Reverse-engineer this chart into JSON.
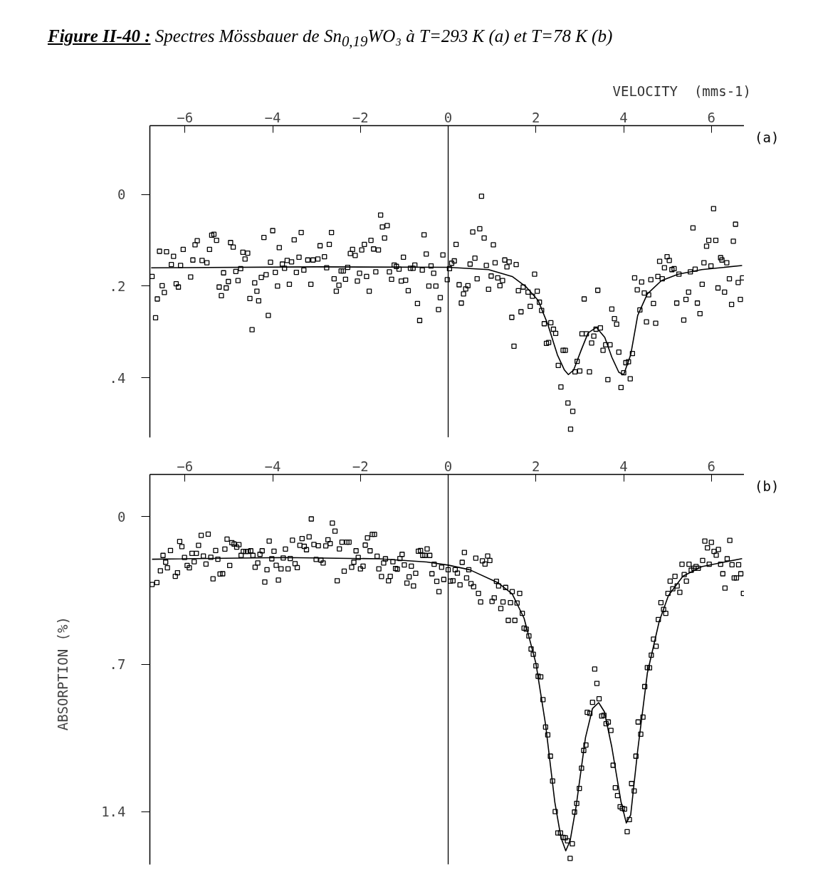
{
  "chart_data": [
    {
      "type": "scatter",
      "title": "Figure II-40 :",
      "subtitle": "Spectres Mössbauer de Sn$_{0,19}$WO₃ à T=293 K (a) et T=78 K (b)",
      "xlabel": "VELOCITY  (mms-1)",
      "annotations": [
        "(a)"
      ],
      "grid": false,
      "xlim": [
        -6.8,
        6.75
      ],
      "xticks": [
        -6,
        -4,
        -2,
        0,
        2,
        4,
        6
      ],
      "ylim": [
        0.53,
        -0.15
      ],
      "yticks": [
        {
          "value": 0,
          "label": "0"
        },
        {
          "value": 0.2,
          "label": ".2"
        },
        {
          "value": 0.4,
          "label": ".4"
        }
      ],
      "ref_lines": [
        {
          "axis": "x",
          "value": 0,
          "label": null
        }
      ],
      "series": [
        {
          "marker": "square",
          "color": "#000000",
          "x": [
            -6.75,
            -6.67,
            -6.63,
            -6.58,
            -6.52,
            -6.47,
            -6.42,
            -6.31,
            -6.26,
            -6.2,
            -6.15,
            -6.1,
            -6.04,
            -5.87,
            -5.82,
            -5.77,
            -5.72,
            -5.61,
            -5.5,
            -5.44,
            -5.39,
            -5.34,
            -5.28,
            -5.22,
            -5.17,
            -5.12,
            -5.06,
            -5.01,
            -4.96,
            -4.9,
            -4.84,
            -4.79,
            -4.73,
            -4.68,
            -4.63,
            -4.57,
            -4.52,
            -4.47,
            -4.41,
            -4.36,
            -4.32,
            -4.26,
            -4.2,
            -4.15,
            -4.1,
            -4.05,
            -4.0,
            -3.94,
            -3.89,
            -3.85,
            -3.78,
            -3.73,
            -3.67,
            -3.62,
            -3.57,
            -3.51,
            -3.46,
            -3.4,
            -3.35,
            -3.29,
            -3.2,
            -3.13,
            -3.08,
            -2.97,
            -2.92,
            -2.82,
            -2.77,
            -2.71,
            -2.66,
            -2.6,
            -2.55,
            -2.49,
            -2.44,
            -2.39,
            -2.34,
            -2.29,
            -2.23,
            -2.18,
            -2.12,
            -2.07,
            -2.02,
            -1.97,
            -1.91,
            -1.86,
            -1.8,
            -1.76,
            -1.7,
            -1.65,
            -1.59,
            -1.54,
            -1.5,
            -1.45,
            -1.39,
            -1.34,
            -1.29,
            -1.23,
            -1.18,
            -1.12,
            -1.07,
            -1.02,
            -0.97,
            -0.91,
            -0.86,
            -0.8,
            -0.76,
            -0.7,
            -0.65,
            -0.59,
            -0.55,
            -0.5,
            -0.44,
            -0.39,
            -0.33,
            -0.28,
            -0.22,
            -0.18,
            -0.12,
            -0.02,
            0.03,
            0.08,
            0.14,
            0.18,
            0.25,
            0.3,
            0.35,
            0.4,
            0.45,
            0.5,
            0.56,
            0.61,
            0.66,
            0.72,
            0.76,
            0.82,
            0.87,
            0.92,
            0.98,
            1.03,
            1.07,
            1.13,
            1.18,
            1.24,
            1.29,
            1.34,
            1.39,
            1.45,
            1.5,
            1.55,
            1.6,
            1.66,
            1.71,
            1.82,
            1.87,
            1.92,
            1.97,
            2.03,
            2.08,
            2.13,
            2.19,
            2.24,
            2.29,
            2.34,
            2.4,
            2.45,
            2.51,
            2.57,
            2.62,
            2.67,
            2.73,
            2.79,
            2.84,
            2.89,
            2.94,
            3.0,
            3.05,
            3.1,
            3.15,
            3.22,
            3.27,
            3.32,
            3.37,
            3.41,
            3.47,
            3.53,
            3.59,
            3.64,
            3.69,
            3.73,
            3.79,
            3.84,
            3.89,
            3.94,
            4.0,
            4.05,
            4.11,
            4.15,
            4.2,
            4.25,
            4.31,
            4.37,
            4.41,
            4.47,
            4.52,
            4.57,
            4.62,
            4.68,
            4.73,
            4.78,
            4.82,
            4.88,
            4.93,
            4.99,
            5.04,
            5.1,
            5.15,
            5.21,
            5.26,
            5.37,
            5.42,
            5.48,
            5.52,
            5.58,
            5.63,
            5.68,
            5.74,
            5.79,
            5.83,
            5.89,
            5.94,
            5.99,
            6.05,
            6.1,
            6.15,
            6.21,
            6.24,
            6.3,
            6.35,
            6.41,
            6.46,
            6.5,
            6.55,
            6.61,
            6.66,
            6.71
          ],
          "values": [
            0.179,
            0.269,
            0.228,
            0.124,
            0.199,
            0.214,
            0.125,
            0.153,
            0.135,
            0.195,
            0.202,
            0.155,
            0.12,
            0.18,
            0.143,
            0.11,
            0.101,
            0.144,
            0.149,
            0.12,
            0.089,
            0.087,
            0.1,
            0.202,
            0.221,
            0.171,
            0.204,
            0.19,
            0.105,
            0.115,
            0.168,
            0.188,
            0.162,
            0.126,
            0.141,
            0.128,
            0.227,
            0.295,
            0.193,
            0.211,
            0.232,
            0.181,
            0.094,
            0.175,
            0.264,
            0.148,
            0.079,
            0.17,
            0.2,
            0.116,
            0.152,
            0.161,
            0.144,
            0.196,
            0.147,
            0.099,
            0.17,
            0.137,
            0.083,
            0.165,
            0.143,
            0.196,
            0.143,
            0.141,
            0.112,
            0.136,
            0.16,
            0.109,
            0.083,
            0.184,
            0.211,
            0.198,
            0.167,
            0.167,
            0.185,
            0.159,
            0.129,
            0.12,
            0.133,
            0.189,
            0.172,
            0.121,
            0.109,
            0.179,
            0.211,
            0.1,
            0.119,
            0.169,
            0.121,
            0.045,
            0.071,
            0.095,
            0.068,
            0.169,
            0.185,
            0.154,
            0.157,
            0.163,
            0.189,
            0.137,
            0.187,
            0.21,
            0.161,
            0.161,
            0.154,
            0.238,
            0.275,
            0.165,
            0.088,
            0.13,
            0.2,
            0.156,
            0.172,
            0.2,
            0.251,
            0.225,
            0.132,
            0.186,
            0.162,
            0.15,
            0.145,
            0.109,
            0.197,
            0.237,
            0.217,
            0.206,
            0.199,
            0.152,
            0.082,
            0.139,
            0.184,
            0.075,
            0.004,
            0.095,
            0.155,
            0.207,
            0.178,
            0.11,
            0.149,
            0.182,
            0.199,
            0.188,
            0.143,
            0.158,
            0.147,
            0.268,
            0.331,
            0.153,
            0.21,
            0.256,
            0.202,
            0.213,
            0.244,
            0.222,
            0.174,
            0.211,
            0.235,
            0.253,
            0.282,
            0.325,
            0.323,
            0.28,
            0.294,
            0.303,
            0.373,
            0.42,
            0.34,
            0.34,
            0.455,
            0.512,
            0.473,
            0.387,
            0.364,
            0.385,
            0.304,
            0.228,
            0.304,
            0.387,
            0.324,
            0.309,
            0.294,
            0.209,
            0.291,
            0.34,
            0.328,
            0.404,
            0.328,
            0.25,
            0.271,
            0.283,
            0.344,
            0.421,
            0.389,
            0.367,
            0.365,
            0.402,
            0.347,
            0.182,
            0.208,
            0.252,
            0.191,
            0.215,
            0.278,
            0.219,
            0.186,
            0.238,
            0.281,
            0.179,
            0.146,
            0.184,
            0.16,
            0.136,
            0.144,
            0.164,
            0.162,
            0.237,
            0.174,
            0.274,
            0.229,
            0.213,
            0.169,
            0.073,
            0.163,
            0.237,
            0.26,
            0.196,
            0.149,
            0.113,
            0.1,
            0.156,
            0.031,
            0.1,
            0.204,
            0.138,
            0.143,
            0.213,
            0.149,
            0.184,
            0.24,
            0.102,
            0.065,
            0.192,
            0.229,
            0.182
          ]
        },
        {
          "type": "line",
          "color": "#000000",
          "x": [
            -6.77,
            -3.0,
            0.0,
            0.92,
            1.46,
            1.78,
            2.05,
            2.27,
            2.49,
            2.65,
            2.74,
            2.86,
            3.03,
            3.19,
            3.38,
            3.57,
            3.73,
            3.89,
            4.0,
            4.16,
            4.32,
            4.54,
            4.86,
            5.24,
            5.78,
            6.7
          ],
          "values": [
            0.16,
            0.158,
            0.159,
            0.164,
            0.179,
            0.202,
            0.231,
            0.283,
            0.35,
            0.383,
            0.393,
            0.383,
            0.34,
            0.302,
            0.29,
            0.312,
            0.355,
            0.388,
            0.393,
            0.35,
            0.264,
            0.217,
            0.188,
            0.174,
            0.164,
            0.155
          ]
        }
      ]
    },
    {
      "type": "scatter",
      "ylabel": "ABSORPTION  (%)",
      "annotations": [
        "(b)"
      ],
      "grid": false,
      "xlim": [
        -6.8,
        6.75
      ],
      "xticks": [
        -6,
        -4,
        -2,
        0,
        2,
        4,
        6
      ],
      "ylim": [
        1.65,
        -0.2
      ],
      "yticks": [
        {
          "value": 0,
          "label": "0"
        },
        {
          "value": 0.7,
          "label": ".7"
        },
        {
          "value": 1.4,
          "label": "1.4"
        }
      ],
      "ref_lines": [
        {
          "axis": "x",
          "value": 0,
          "label": null
        }
      ],
      "series": [
        {
          "marker": "square",
          "color": "#000000",
          "x": [
            -6.75,
            -6.64,
            -6.56,
            -6.5,
            -6.44,
            -6.4,
            -6.33,
            -6.22,
            -6.17,
            -6.12,
            -6.07,
            -6.01,
            -5.95,
            -5.9,
            -5.84,
            -5.79,
            -5.74,
            -5.69,
            -5.63,
            -5.58,
            -5.52,
            -5.47,
            -5.41,
            -5.36,
            -5.3,
            -5.25,
            -5.2,
            -5.14,
            -5.09,
            -5.04,
            -4.98,
            -4.93,
            -4.88,
            -4.82,
            -4.77,
            -4.72,
            -4.67,
            -4.61,
            -4.56,
            -4.5,
            -4.45,
            -4.4,
            -4.34,
            -4.29,
            -4.24,
            -4.18,
            -4.13,
            -4.08,
            -4.02,
            -3.97,
            -3.92,
            -3.87,
            -3.81,
            -3.76,
            -3.71,
            -3.65,
            -3.6,
            -3.55,
            -3.49,
            -3.44,
            -3.38,
            -3.33,
            -3.28,
            -3.23,
            -3.17,
            -3.12,
            -3.06,
            -3.01,
            -2.96,
            -2.9,
            -2.85,
            -2.79,
            -2.74,
            -2.69,
            -2.64,
            -2.58,
            -2.53,
            -2.48,
            -2.42,
            -2.37,
            -2.31,
            -2.26,
            -2.2,
            -2.15,
            -2.1,
            -2.05,
            -2.0,
            -1.94,
            -1.89,
            -1.84,
            -1.78,
            -1.73,
            -1.68,
            -1.62,
            -1.58,
            -1.52,
            -1.47,
            -1.43,
            -1.36,
            -1.32,
            -1.26,
            -1.2,
            -1.16,
            -1.1,
            -1.05,
            -1.0,
            -0.94,
            -0.89,
            -0.84,
            -0.79,
            -0.74,
            -0.68,
            -0.63,
            -0.58,
            -0.53,
            -0.48,
            -0.42,
            -0.37,
            -0.32,
            -0.26,
            -0.21,
            -0.15,
            -0.1,
            0.0,
            0.05,
            0.11,
            0.16,
            0.21,
            0.27,
            0.32,
            0.37,
            0.42,
            0.47,
            0.52,
            0.58,
            0.63,
            0.69,
            0.74,
            0.78,
            0.84,
            0.9,
            0.95,
            1.0,
            1.05,
            1.1,
            1.15,
            1.2,
            1.25,
            1.31,
            1.37,
            1.42,
            1.46,
            1.52,
            1.57,
            1.63,
            1.69,
            1.73,
            1.78,
            1.84,
            1.89,
            1.94,
            2.0,
            2.05,
            2.11,
            2.16,
            2.22,
            2.27,
            2.33,
            2.38,
            2.44,
            2.5,
            2.56,
            2.62,
            2.67,
            2.72,
            2.78,
            2.83,
            2.88,
            2.93,
            2.99,
            3.04,
            3.09,
            3.14,
            3.17,
            3.23,
            3.29,
            3.34,
            3.39,
            3.44,
            3.5,
            3.55,
            3.6,
            3.65,
            3.71,
            3.76,
            3.81,
            3.86,
            3.92,
            3.97,
            4.02,
            4.08,
            4.13,
            4.18,
            4.24,
            4.28,
            4.33,
            4.39,
            4.44,
            4.48,
            4.54,
            4.59,
            4.63,
            4.68,
            4.74,
            4.79,
            4.85,
            4.91,
            4.96,
            5.01,
            5.06,
            5.12,
            5.17,
            5.22,
            5.28,
            5.33,
            5.38,
            5.43,
            5.49,
            5.54,
            5.6,
            5.65,
            5.7,
            5.8,
            5.85,
            5.91,
            5.95,
            6.0,
            6.06,
            6.11,
            6.16,
            6.21,
            6.26,
            6.31,
            6.36,
            6.42,
            6.47,
            6.52,
            6.57,
            6.62,
            6.67,
            6.73
          ],
          "values": [
            0.322,
            0.313,
            0.257,
            0.184,
            0.216,
            0.243,
            0.161,
            0.283,
            0.266,
            0.118,
            0.142,
            0.194,
            0.232,
            0.243,
            0.174,
            0.214,
            0.174,
            0.136,
            0.089,
            0.187,
            0.225,
            0.083,
            0.193,
            0.295,
            0.161,
            0.202,
            0.272,
            0.271,
            0.154,
            0.107,
            0.232,
            0.124,
            0.13,
            0.145,
            0.133,
            0.184,
            0.165,
            0.165,
            0.165,
            0.162,
            0.184,
            0.24,
            0.22,
            0.179,
            0.162,
            0.31,
            0.252,
            0.116,
            0.2,
            0.164,
            0.231,
            0.301,
            0.248,
            0.196,
            0.154,
            0.248,
            0.199,
            0.112,
            0.223,
            0.242,
            0.136,
            0.104,
            0.141,
            0.157,
            0.096,
            0.011,
            0.132,
            0.203,
            0.138,
            0.206,
            0.22,
            0.139,
            0.11,
            0.128,
            0.031,
            0.069,
            0.304,
            0.153,
            0.121,
            0.259,
            0.121,
            0.121,
            0.24,
            0.216,
            0.162,
            0.194,
            0.248,
            0.235,
            0.135,
            0.101,
            0.162,
            0.084,
            0.084,
            0.188,
            0.248,
            0.284,
            0.22,
            0.2,
            0.304,
            0.283,
            0.214,
            0.246,
            0.249,
            0.199,
            0.179,
            0.229,
            0.315,
            0.286,
            0.235,
            0.329,
            0.269,
            0.164,
            0.161,
            0.184,
            0.184,
            0.153,
            0.184,
            0.271,
            0.226,
            0.307,
            0.356,
            0.24,
            0.298,
            0.252,
            0.306,
            0.304,
            0.252,
            0.268,
            0.324,
            0.217,
            0.17,
            0.291,
            0.252,
            0.318,
            0.332,
            0.197,
            0.364,
            0.405,
            0.21,
            0.225,
            0.187,
            0.208,
            0.402,
            0.385,
            0.307,
            0.329,
            0.436,
            0.405,
            0.336,
            0.492,
            0.408,
            0.356,
            0.492,
            0.41,
            0.364,
            0.459,
            0.529,
            0.534,
            0.566,
            0.628,
            0.653,
            0.708,
            0.757,
            0.76,
            0.868,
            0.998,
            1.035,
            1.136,
            1.254,
            1.399,
            1.5,
            1.5,
            1.521,
            1.523,
            1.537,
            1.621,
            1.552,
            1.401,
            1.36,
            1.289,
            1.193,
            1.109,
            1.083,
            0.928,
            0.933,
            0.881,
            0.723,
            0.791,
            0.864,
            0.946,
            0.942,
            0.982,
            0.974,
            1.014,
            1.179,
            1.286,
            1.323,
            1.376,
            1.384,
            1.387,
            1.494,
            1.437,
            1.266,
            1.301,
            1.136,
            0.974,
            1.032,
            0.951,
            0.806,
            0.716,
            0.717,
            0.657,
            0.581,
            0.615,
            0.488,
            0.408,
            0.44,
            0.459,
            0.364,
            0.306,
            0.342,
            0.283,
            0.329,
            0.359,
            0.226,
            0.275,
            0.306,
            0.226,
            0.254,
            0.245,
            0.237,
            0.245,
            0.208,
            0.116,
            0.148,
            0.226,
            0.122,
            0.165,
            0.183,
            0.156,
            0.226,
            0.271,
            0.339,
            0.2,
            0.113,
            0.228,
            0.291,
            0.291,
            0.228,
            0.271,
            0.364
          ]
        },
        {
          "type": "line",
          "color": "#000000",
          "x": [
            -6.75,
            -3.73,
            -1.57,
            -0.49,
            0.0,
            0.49,
            1.13,
            1.46,
            1.73,
            2.0,
            2.22,
            2.43,
            2.57,
            2.68,
            2.78,
            2.92,
            3.13,
            3.29,
            3.43,
            3.56,
            3.73,
            3.94,
            4.06,
            4.16,
            4.32,
            4.54,
            4.81,
            5.02,
            5.35,
            5.78,
            6.7
          ],
          "values": [
            0.202,
            0.194,
            0.2,
            0.215,
            0.23,
            0.252,
            0.313,
            0.367,
            0.482,
            0.696,
            0.986,
            1.353,
            1.521,
            1.585,
            1.537,
            1.369,
            1.048,
            0.91,
            0.882,
            0.925,
            1.093,
            1.353,
            1.453,
            1.415,
            1.109,
            0.742,
            0.497,
            0.375,
            0.283,
            0.237,
            0.199
          ]
        }
      ]
    }
  ]
}
